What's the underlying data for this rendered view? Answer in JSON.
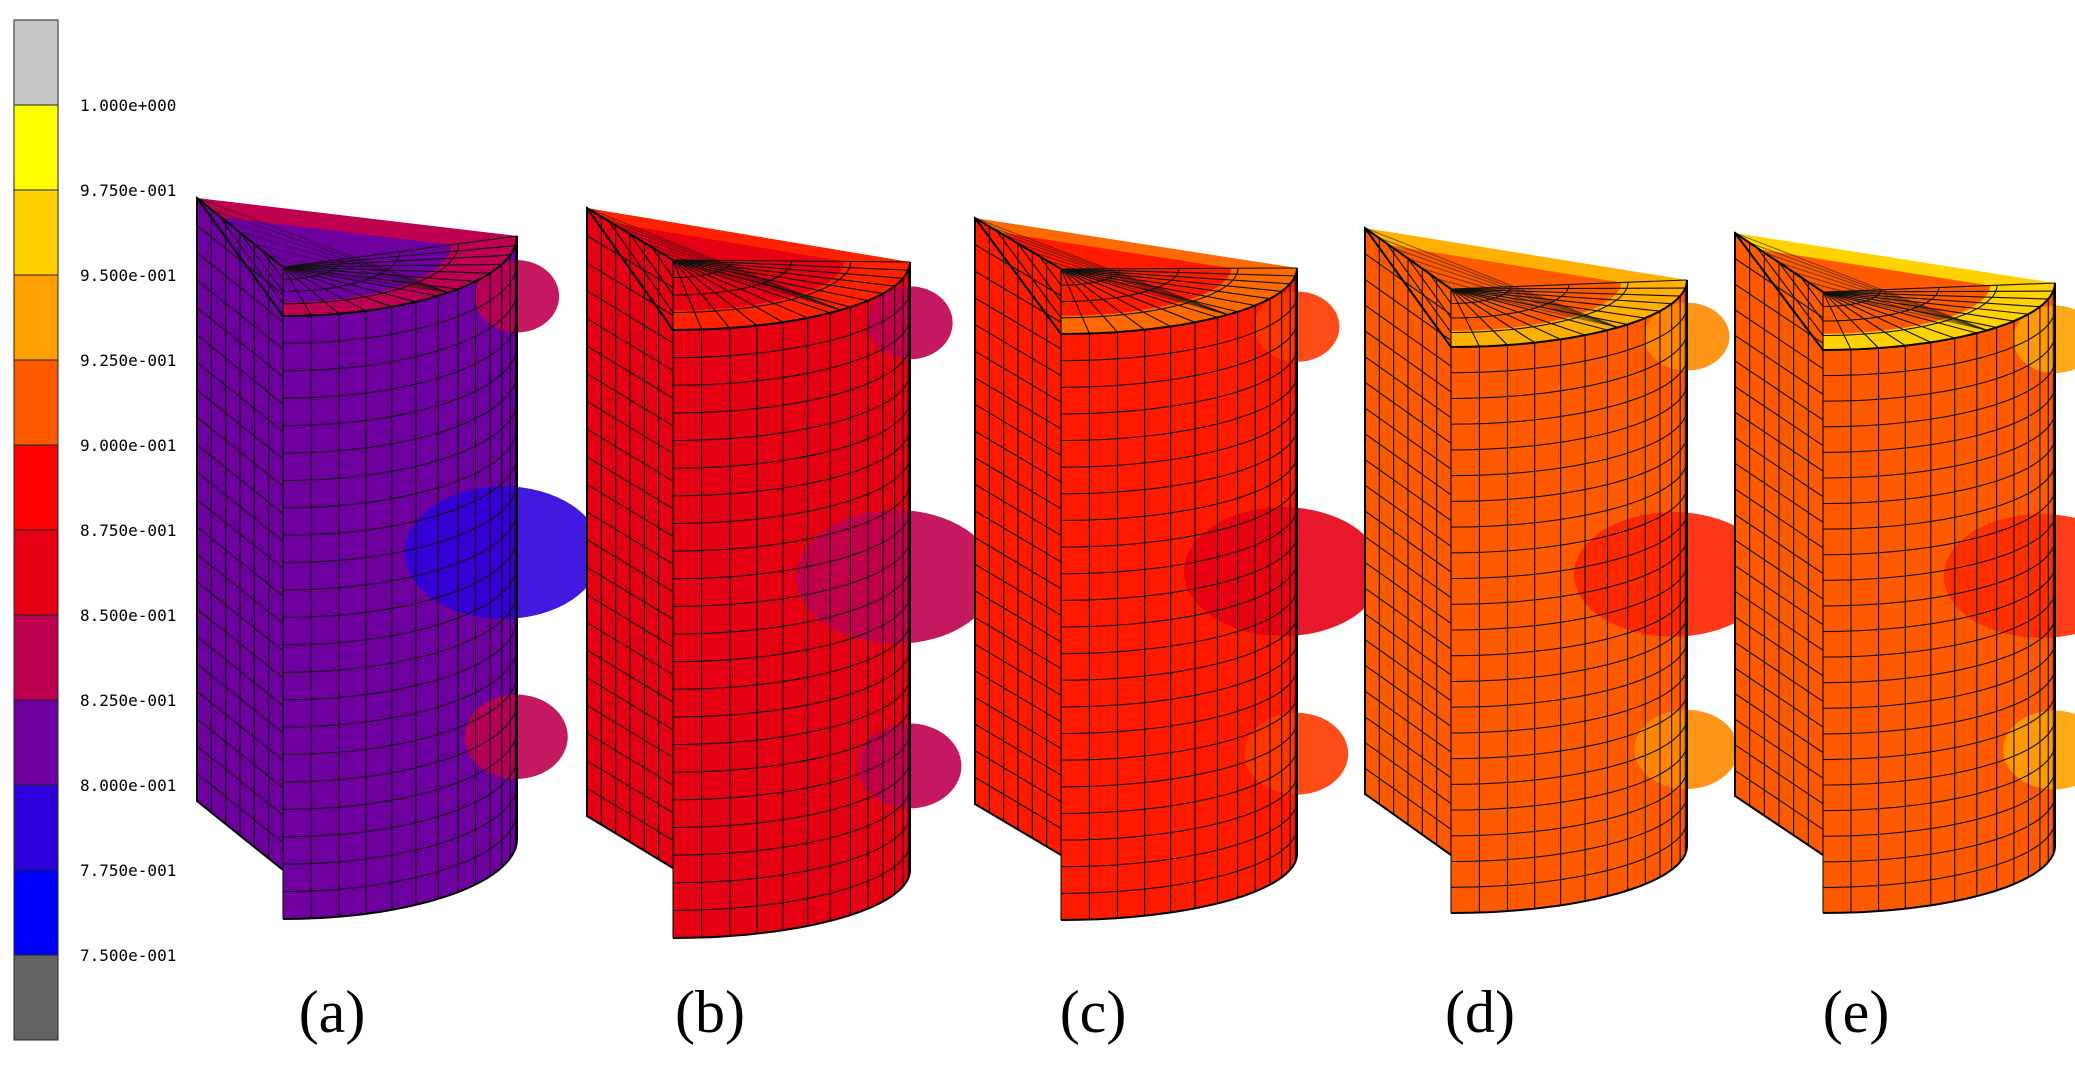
{
  "legend": {
    "levels": [
      {
        "color": "#c8c8c8"
      },
      {
        "color": "#ffff00",
        "label": "1.000e+000"
      },
      {
        "color": "#ffd200",
        "label": "9.750e-001"
      },
      {
        "color": "#ff9f00",
        "label": "9.500e-001"
      },
      {
        "color": "#ff5a00",
        "label": "9.250e-001"
      },
      {
        "color": "#ff0000",
        "label": "9.000e-001"
      },
      {
        "color": "#e60014",
        "label": "8.750e-001"
      },
      {
        "color": "#be0050",
        "label": "8.500e-001"
      },
      {
        "color": "#6e00a0",
        "label": "8.250e-001"
      },
      {
        "color": "#2d00dc",
        "label": "8.000e-001"
      },
      {
        "color": "#0000ff",
        "label": "7.750e-001"
      },
      {
        "color": "#646464",
        "label": "7.500e-001"
      }
    ]
  },
  "panels": [
    {
      "caption": "(a)",
      "base": "#6e00a0",
      "rim": "#be0050",
      "patch": "#2d00dc",
      "band": "#be0050"
    },
    {
      "caption": "(b)",
      "base": "#e60014",
      "rim": "#ff2200",
      "patch": "#be0050",
      "band": "#be0050"
    },
    {
      "caption": "(c)",
      "base": "#ff1a00",
      "rim": "#ff6a00",
      "patch": "#e60014",
      "band": "#ff3a00"
    },
    {
      "caption": "(d)",
      "base": "#ff5a00",
      "rim": "#ffb000",
      "patch": "#ff2200",
      "band": "#ff8a00"
    },
    {
      "caption": "(e)",
      "base": "#ff5a00",
      "rim": "#ffd200",
      "patch": "#ff2a00",
      "band": "#ffa000"
    }
  ]
}
